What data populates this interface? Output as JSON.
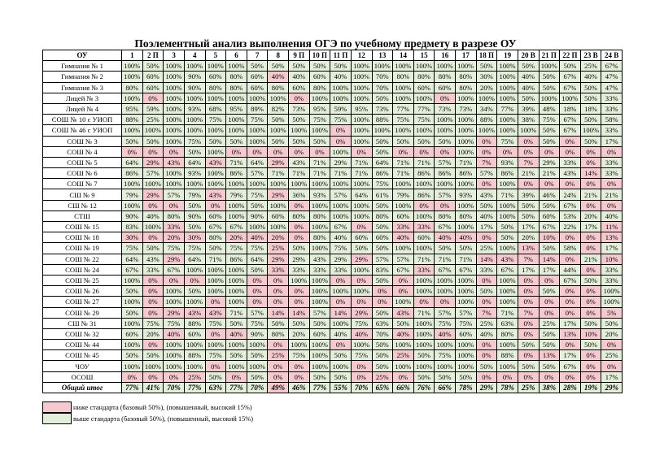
{
  "title": "Поэлементный анализ выполнения ОГЭ по учебному предмету в разрезе ОУ",
  "colors": {
    "below": "#f6c9cf",
    "above": "#e4efda"
  },
  "header": {
    "ou": "ОУ",
    "columns": [
      "1",
      "2 П",
      "3",
      "4",
      "5",
      "6",
      "7",
      "8",
      "9 П",
      "10 П",
      "11 П",
      "12",
      "13",
      "14",
      "15",
      "16",
      "17",
      "18 П",
      "19",
      "20 В",
      "21 П",
      "22 П",
      "23 В",
      "24 В"
    ]
  },
  "rows": [
    {
      "name": "Гимназия № 1",
      "values": [
        100,
        50,
        100,
        100,
        100,
        100,
        50,
        50,
        50,
        50,
        50,
        100,
        100,
        100,
        100,
        100,
        100,
        50,
        100,
        50,
        100,
        50,
        25,
        67
      ],
      "below_standard": []
    },
    {
      "name": "Гимназия № 2",
      "values": [
        100,
        60,
        100,
        90,
        60,
        80,
        60,
        40,
        40,
        60,
        40,
        100,
        70,
        80,
        80,
        80,
        80,
        30,
        100,
        40,
        50,
        67,
        40,
        47
      ],
      "below_standard": [
        7
      ]
    },
    {
      "name": "Гимназия № 3",
      "values": [
        80,
        60,
        100,
        90,
        80,
        80,
        60,
        80,
        60,
        80,
        100,
        100,
        70,
        100,
        60,
        60,
        80,
        20,
        100,
        40,
        50,
        67,
        50,
        47
      ],
      "below_standard": []
    },
    {
      "name": "Лицей № 3",
      "values": [
        100,
        0,
        100,
        100,
        100,
        100,
        100,
        100,
        0,
        100,
        100,
        100,
        50,
        100,
        100,
        0,
        100,
        100,
        100,
        50,
        100,
        100,
        50,
        33
      ],
      "below_standard": [
        1,
        8,
        15
      ]
    },
    {
      "name": "Лицей № 4",
      "values": [
        95,
        59,
        100,
        93,
        68,
        95,
        89,
        82,
        73,
        95,
        59,
        95,
        73,
        77,
        77,
        73,
        73,
        34,
        77,
        39,
        48,
        18,
        18,
        33
      ],
      "below_standard": []
    },
    {
      "name": "СОШ № 10 с УИОП",
      "values": [
        88,
        25,
        100,
        100,
        75,
        100,
        75,
        50,
        50,
        75,
        75,
        100,
        88,
        75,
        75,
        100,
        100,
        88,
        100,
        38,
        75,
        67,
        50,
        58
      ],
      "below_standard": []
    },
    {
      "name": "СОШ № 46 с УИОП",
      "values": [
        100,
        100,
        100,
        100,
        100,
        100,
        100,
        100,
        100,
        100,
        0,
        100,
        100,
        100,
        100,
        100,
        100,
        100,
        100,
        100,
        50,
        67,
        100,
        33
      ],
      "below_standard": [
        10
      ]
    },
    {
      "name": "СОШ № 3",
      "values": [
        50,
        50,
        100,
        75,
        50,
        50,
        100,
        50,
        50,
        50,
        0,
        100,
        50,
        50,
        50,
        50,
        100,
        0,
        75,
        0,
        50,
        0,
        50,
        17
      ],
      "below_standard": [
        10,
        17,
        19,
        21
      ]
    },
    {
      "name": "СОШ № 4",
      "values": [
        0,
        0,
        0,
        50,
        100,
        0,
        0,
        0,
        0,
        0,
        100,
        0,
        50,
        0,
        0,
        0,
        100,
        0,
        0,
        0,
        0,
        0,
        0,
        0
      ],
      "below_standard": [
        0,
        1,
        2,
        5,
        6,
        7,
        8,
        9,
        11,
        13,
        14,
        15,
        17,
        18,
        19,
        20,
        21,
        22,
        23
      ]
    },
    {
      "name": "СОШ № 5",
      "values": [
        64,
        29,
        43,
        64,
        43,
        71,
        64,
        29,
        43,
        71,
        29,
        71,
        64,
        71,
        71,
        57,
        71,
        7,
        93,
        7,
        29,
        33,
        0,
        33
      ],
      "below_standard": [
        1,
        2,
        4,
        7,
        17,
        19,
        22
      ]
    },
    {
      "name": "СОШ № 6",
      "values": [
        86,
        57,
        100,
        93,
        100,
        86,
        57,
        71,
        71,
        71,
        71,
        71,
        86,
        71,
        86,
        86,
        86,
        57,
        86,
        21,
        21,
        43,
        14,
        33
      ],
      "below_standard": [
        22
      ]
    },
    {
      "name": "СОШ № 7",
      "values": [
        100,
        100,
        100,
        100,
        100,
        100,
        100,
        100,
        100,
        100,
        100,
        100,
        75,
        100,
        100,
        100,
        100,
        0,
        100,
        0,
        0,
        0,
        0,
        0
      ],
      "below_standard": [
        17,
        19,
        20,
        21,
        22,
        23
      ]
    },
    {
      "name": "СШ № 9",
      "values": [
        79,
        29,
        57,
        79,
        43,
        79,
        75,
        29,
        36,
        93,
        57,
        64,
        61,
        79,
        86,
        57,
        93,
        43,
        71,
        39,
        46,
        24,
        21,
        21
      ],
      "below_standard": [
        1,
        4,
        7
      ]
    },
    {
      "name": "СШ № 12",
      "values": [
        100,
        0,
        0,
        50,
        0,
        100,
        50,
        100,
        0,
        100,
        100,
        100,
        50,
        100,
        0,
        0,
        100,
        50,
        100,
        50,
        50,
        67,
        0,
        0
      ],
      "below_standard": [
        1,
        2,
        4,
        8,
        14,
        15,
        22,
        23
      ]
    },
    {
      "name": "СТШ",
      "values": [
        90,
        40,
        80,
        90,
        60,
        100,
        90,
        60,
        80,
        80,
        100,
        100,
        80,
        60,
        100,
        80,
        80,
        40,
        100,
        50,
        60,
        53,
        20,
        40
      ],
      "below_standard": []
    },
    {
      "name": "СОШ № 15",
      "values": [
        83,
        100,
        33,
        50,
        67,
        67,
        100,
        100,
        0,
        100,
        67,
        0,
        50,
        33,
        33,
        67,
        100,
        17,
        50,
        17,
        67,
        22,
        17,
        11
      ],
      "below_standard": [
        2,
        8,
        11,
        13,
        14,
        23
      ]
    },
    {
      "name": "СОШ № 18",
      "values": [
        30,
        0,
        20,
        30,
        80,
        20,
        40,
        20,
        0,
        80,
        40,
        60,
        60,
        40,
        60,
        40,
        40,
        0,
        50,
        20,
        10,
        0,
        0,
        13
      ],
      "below_standard": [
        0,
        1,
        2,
        3,
        5,
        6,
        7,
        8,
        13,
        15,
        16,
        17,
        20,
        21,
        22,
        23
      ]
    },
    {
      "name": "СОШ № 19",
      "values": [
        75,
        50,
        75,
        75,
        50,
        75,
        75,
        25,
        50,
        100,
        75,
        50,
        50,
        100,
        100,
        50,
        50,
        25,
        100,
        13,
        50,
        58,
        0,
        17
      ],
      "below_standard": [
        7,
        19,
        22
      ]
    },
    {
      "name": "СОШ № 22",
      "values": [
        64,
        43,
        29,
        64,
        71,
        86,
        64,
        29,
        29,
        43,
        29,
        29,
        57,
        57,
        71,
        71,
        71,
        14,
        43,
        7,
        14,
        0,
        21,
        10
      ],
      "below_standard": [
        2,
        7,
        11,
        17,
        18,
        19,
        20,
        21,
        23
      ]
    },
    {
      "name": "СОШ № 24",
      "values": [
        67,
        33,
        67,
        100,
        100,
        100,
        50,
        33,
        33,
        33,
        33,
        100,
        83,
        67,
        33,
        67,
        67,
        33,
        67,
        17,
        17,
        44,
        0,
        33
      ],
      "below_standard": [
        7,
        14,
        22
      ]
    },
    {
      "name": "СОШ № 25",
      "values": [
        100,
        0,
        0,
        0,
        100,
        100,
        0,
        0,
        100,
        100,
        0,
        0,
        50,
        0,
        100,
        100,
        100,
        0,
        100,
        0,
        0,
        67,
        50,
        33
      ],
      "below_standard": [
        1,
        2,
        3,
        6,
        7,
        10,
        11,
        13,
        17,
        19,
        20
      ]
    },
    {
      "name": "СОШ № 26",
      "values": [
        50,
        0,
        100,
        50,
        100,
        100,
        0,
        0,
        0,
        100,
        100,
        100,
        0,
        0,
        100,
        100,
        100,
        50,
        100,
        0,
        50,
        0,
        0,
        100
      ],
      "below_standard": [
        1,
        6,
        7,
        8,
        12,
        13,
        19,
        21,
        22
      ]
    },
    {
      "name": "СОШ № 27",
      "values": [
        100,
        0,
        100,
        100,
        0,
        100,
        0,
        0,
        0,
        100,
        0,
        0,
        0,
        100,
        0,
        0,
        100,
        0,
        100,
        0,
        0,
        0,
        0,
        100
      ],
      "below_standard": [
        1,
        4,
        6,
        7,
        8,
        10,
        11,
        12,
        14,
        15,
        17,
        19,
        20,
        21,
        22
      ]
    },
    {
      "name": "СОШ № 29",
      "values": [
        50,
        0,
        29,
        43,
        43,
        71,
        57,
        14,
        14,
        57,
        14,
        29,
        50,
        43,
        71,
        57,
        57,
        7,
        71,
        7,
        0,
        0,
        0,
        5
      ],
      "below_standard": [
        1,
        2,
        3,
        4,
        7,
        8,
        10,
        11,
        13,
        17,
        19,
        20,
        21,
        22,
        23
      ]
    },
    {
      "name": "СШ № 31",
      "values": [
        100,
        75,
        75,
        88,
        75,
        50,
        75,
        50,
        50,
        50,
        100,
        75,
        63,
        50,
        100,
        75,
        75,
        25,
        63,
        0,
        25,
        17,
        50,
        50
      ],
      "below_standard": [
        19
      ]
    },
    {
      "name": "СОШ № 32",
      "values": [
        60,
        20,
        40,
        60,
        0,
        40,
        90,
        80,
        20,
        60,
        40,
        40,
        70,
        40,
        100,
        40,
        60,
        40,
        80,
        0,
        50,
        13,
        10,
        20
      ],
      "below_standard": [
        2,
        4,
        5,
        11,
        13,
        15,
        19,
        21,
        22
      ]
    },
    {
      "name": "СОШ № 44",
      "values": [
        100,
        0,
        100,
        100,
        100,
        100,
        100,
        0,
        100,
        100,
        0,
        100,
        50,
        100,
        100,
        100,
        100,
        0,
        100,
        50,
        50,
        0,
        50,
        0
      ],
      "below_standard": [
        1,
        7,
        10,
        17,
        21,
        23
      ]
    },
    {
      "name": "СОШ № 45",
      "values": [
        50,
        50,
        100,
        88,
        75,
        50,
        50,
        25,
        75,
        100,
        50,
        75,
        50,
        25,
        50,
        75,
        100,
        0,
        88,
        0,
        13,
        17,
        0,
        25
      ],
      "below_standard": [
        7,
        13,
        17,
        19,
        20,
        22
      ]
    },
    {
      "name": "ЧОУ",
      "values": [
        100,
        100,
        100,
        100,
        0,
        100,
        100,
        0,
        0,
        100,
        100,
        0,
        50,
        100,
        100,
        100,
        100,
        50,
        100,
        50,
        50,
        67,
        0,
        0
      ],
      "below_standard": [
        4,
        7,
        8,
        11,
        22,
        23
      ]
    },
    {
      "name": "ОСОШ",
      "values": [
        0,
        0,
        0,
        25,
        50,
        0,
        50,
        0,
        0,
        50,
        50,
        0,
        25,
        0,
        50,
        50,
        50,
        0,
        0,
        0,
        0,
        0,
        0,
        17
      ],
      "below_standard": [
        0,
        1,
        2,
        3,
        5,
        7,
        8,
        11,
        12,
        13,
        17,
        18,
        19,
        20,
        21,
        22
      ]
    }
  ],
  "total": {
    "name": "Общий итог",
    "values": [
      77,
      41,
      70,
      77,
      63,
      77,
      70,
      49,
      46,
      77,
      55,
      70,
      65,
      66,
      76,
      66,
      78,
      29,
      78,
      25,
      38,
      28,
      19,
      29
    ],
    "below_standard": [
      7
    ]
  },
  "legend": {
    "below": "ниже стандарта (базовый 50%), (повышенный, высокий 15%)",
    "above": "выше стандарта (базовый 50%), (повышенный, высокий 15%)"
  }
}
